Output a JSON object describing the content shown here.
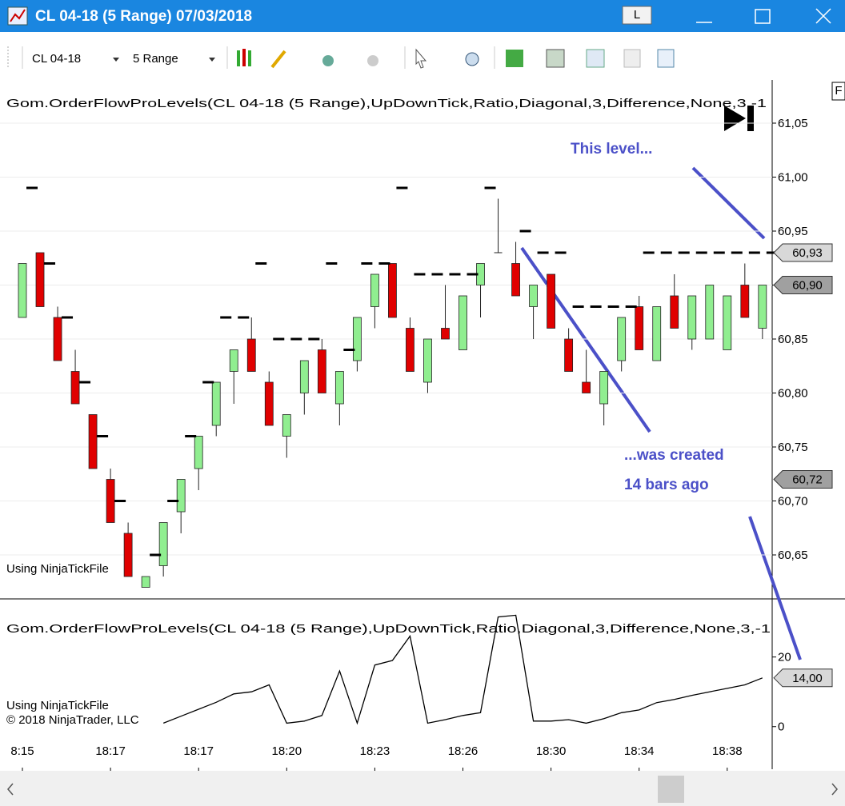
{
  "window": {
    "title": "CL 04-18 (5 Range)  07/03/2018",
    "button": "L"
  },
  "toolbar": {
    "instrument": "CL 04-18",
    "period": "5 Range"
  },
  "chart_data": [
    {
      "type": "candlestick",
      "label": "Gom.OrderFlowProLevels(CL  04-18 (5 Range),UpDownTick,Ratio,Diagonal,3,Difference,None,3,-1",
      "watermark": "Using NinjaTickFile",
      "corner_label": "F",
      "up_color": "#90ee90",
      "down_color": "#e00000",
      "level_color": "#000000",
      "candles": [
        [
          60.87,
          60.92,
          60.87,
          60.92
        ],
        [
          60.93,
          60.93,
          60.88,
          60.88
        ],
        [
          60.87,
          60.88,
          60.83,
          60.83
        ],
        [
          60.82,
          60.84,
          60.79,
          60.79
        ],
        [
          60.78,
          60.78,
          60.73,
          60.73
        ],
        [
          60.72,
          60.73,
          60.68,
          60.68
        ],
        [
          60.67,
          60.68,
          60.63,
          60.63
        ],
        [
          60.62,
          60.63,
          60.62,
          60.63
        ],
        [
          60.64,
          60.68,
          60.63,
          60.68
        ],
        [
          60.69,
          60.72,
          60.67,
          60.72
        ],
        [
          60.73,
          60.76,
          60.71,
          60.76
        ],
        [
          60.77,
          60.81,
          60.76,
          60.81
        ],
        [
          60.82,
          60.84,
          60.79,
          60.84
        ],
        [
          60.85,
          60.87,
          60.82,
          60.82
        ],
        [
          60.81,
          60.82,
          60.77,
          60.77
        ],
        [
          60.76,
          60.78,
          60.74,
          60.78
        ],
        [
          60.8,
          60.83,
          60.78,
          60.83
        ],
        [
          60.84,
          60.85,
          60.8,
          60.8
        ],
        [
          60.79,
          60.82,
          60.77,
          60.82
        ],
        [
          60.83,
          60.87,
          60.82,
          60.87
        ],
        [
          60.88,
          60.91,
          60.86,
          60.91
        ],
        [
          60.92,
          60.92,
          60.87,
          60.87
        ],
        [
          60.86,
          60.87,
          60.82,
          60.82
        ],
        [
          60.81,
          60.85,
          60.8,
          60.85
        ],
        [
          60.86,
          60.9,
          60.85,
          60.85
        ],
        [
          60.84,
          60.89,
          60.84,
          60.89
        ],
        [
          60.9,
          60.92,
          60.87,
          60.92
        ],
        [
          60.93,
          60.98,
          60.93,
          60.93
        ],
        [
          60.92,
          60.94,
          60.89,
          60.89
        ],
        [
          60.88,
          60.9,
          60.85,
          60.9
        ],
        [
          60.91,
          60.91,
          60.86,
          60.86
        ],
        [
          60.85,
          60.86,
          60.82,
          60.82
        ],
        [
          60.81,
          60.84,
          60.8,
          60.8
        ],
        [
          60.79,
          60.82,
          60.77,
          60.82
        ],
        [
          60.83,
          60.87,
          60.82,
          60.87
        ],
        [
          60.88,
          60.89,
          60.84,
          60.84
        ],
        [
          60.83,
          60.88,
          60.83,
          60.88
        ],
        [
          60.89,
          60.91,
          60.86,
          60.86
        ],
        [
          60.85,
          60.89,
          60.84,
          60.89
        ],
        [
          60.85,
          60.9,
          60.85,
          60.9
        ],
        [
          60.84,
          60.89,
          60.84,
          60.89
        ],
        [
          60.9,
          60.92,
          60.87,
          60.87
        ],
        [
          60.86,
          60.9,
          60.85,
          60.9
        ]
      ],
      "levels": [
        60.99,
        60.92,
        60.87,
        60.81,
        60.76,
        60.7,
        null,
        60.65,
        60.7,
        60.76,
        60.81,
        60.87,
        60.87,
        60.92,
        60.85,
        60.85,
        60.85,
        60.92,
        60.84,
        60.92,
        60.92,
        60.99,
        60.91,
        60.91,
        60.91,
        60.91,
        60.99,
        null,
        60.95,
        60.93,
        60.93,
        60.88,
        60.88,
        60.88,
        60.88,
        60.93,
        60.93,
        60.93,
        60.93,
        60.93,
        60.93,
        60.93,
        60.93
      ],
      "ylim": [
        60.61,
        61.09
      ],
      "yticks": [
        {
          "value": 61.05,
          "label": "61,05"
        },
        {
          "value": 61.0,
          "label": "61,00"
        },
        {
          "value": 60.95,
          "label": "60,95"
        },
        {
          "value": 60.9,
          "label": "60,90"
        },
        {
          "value": 60.85,
          "label": "60,85"
        },
        {
          "value": 60.8,
          "label": "60,80"
        },
        {
          "value": 60.75,
          "label": "60,75"
        },
        {
          "value": 60.7,
          "label": "60,70"
        },
        {
          "value": 60.65,
          "label": "60,65"
        }
      ],
      "grid": true,
      "price_markers": [
        {
          "value": 60.93,
          "label": "60,93",
          "color": "#d8d8d8"
        },
        {
          "value": 60.9,
          "label": "60,90",
          "color": "#a0a0a0"
        },
        {
          "value": 60.72,
          "label": "60,72",
          "color": "#a0a0a0"
        }
      ],
      "annotations": [
        "This level...",
        "...was created",
        "14 bars ago"
      ]
    },
    {
      "type": "line",
      "label": "Gom.OrderFlowProLevels(CL  04-18 (5 Range),UpDownTick,Ratio,Diagonal,3,Difference,None,3,-1",
      "watermark": "Using NinjaTickFile",
      "copyright": "© 2018 NinjaTrader, LLC",
      "color": "#000000",
      "categories": [
        "8:15",
        null,
        null,
        null,
        null,
        "18:17",
        null,
        null,
        null,
        null,
        "18:17",
        null,
        null,
        null,
        null,
        "18:20",
        null,
        null,
        null,
        null,
        "18:23",
        null,
        null,
        null,
        null,
        "18:26",
        null,
        null,
        null,
        null,
        "18:30",
        null,
        null,
        null,
        null,
        "18:34",
        null,
        null,
        null,
        null,
        "18:38",
        null,
        null
      ],
      "values": [
        null,
        null,
        null,
        null,
        null,
        null,
        null,
        null,
        1,
        3,
        5,
        7,
        9.4,
        10,
        12,
        1,
        1.6,
        3.2,
        16,
        1,
        17.7,
        19,
        26,
        1,
        2,
        3.2,
        4,
        31.5,
        32,
        1.6,
        1.6,
        2,
        1,
        2.3,
        4,
        4.8,
        6.9,
        7.8,
        9,
        10,
        11,
        12,
        14
      ],
      "ylim": [
        -12,
        36
      ],
      "yticks": [
        20,
        0
      ],
      "value_marker": {
        "value": 14,
        "label": "14,00",
        "color": "#d8d8d8"
      }
    }
  ]
}
